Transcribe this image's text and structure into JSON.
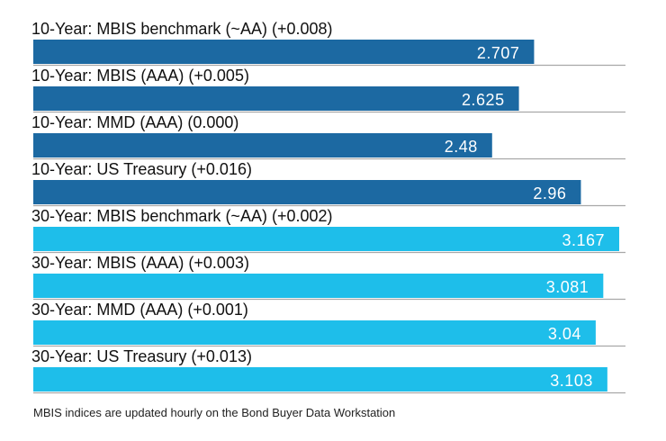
{
  "chart_data": {
    "type": "bar",
    "orientation": "horizontal",
    "categories": [
      "10-Year: MBIS benchmark (~AA) (+0.008)",
      "10-Year: MBIS (AAA) (+0.005)",
      "10-Year: MMD (AAA) (0.000)",
      "10-Year: US Treasury (+0.016)",
      "30-Year: MBIS benchmark (~AA) (+0.002)",
      "30-Year: MBIS (AAA) (+0.003)",
      "30-Year: MMD (AAA) (+0.001)",
      "30-Year: US Treasury (+0.013)"
    ],
    "values": [
      2.707,
      2.625,
      2.48,
      2.96,
      3.167,
      3.081,
      3.04,
      3.103
    ],
    "value_labels": [
      "2.707",
      "2.625",
      "2.48",
      "2.96",
      "3.167",
      "3.081",
      "3.04",
      "3.103"
    ],
    "bar_colors": [
      "#1c69a2",
      "#1c69a2",
      "#1c69a2",
      "#1c69a2",
      "#1ebeea",
      "#1ebeea",
      "#1ebeea",
      "#1ebeea"
    ],
    "xlim": [
      0,
      3.2
    ],
    "grid": false,
    "note": "MBIS indices are updated hourly on the Bond Buyer Data Workstation"
  }
}
